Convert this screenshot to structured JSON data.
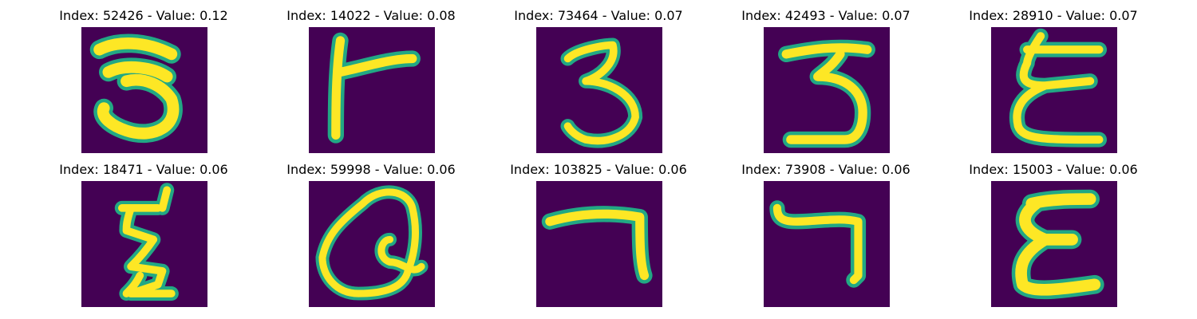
{
  "colors": {
    "background": "#440154",
    "stroke_outer": "#22a884",
    "stroke_inner": "#fde725"
  },
  "panels": [
    {
      "title": "Index: 52426 - Value: 0.12",
      "glyph": "3a"
    },
    {
      "title": "Index: 14022 - Value: 0.08",
      "glyph": "r"
    },
    {
      "title": "Index: 73464 - Value: 0.07",
      "glyph": "3b"
    },
    {
      "title": "Index: 42493 - Value: 0.07",
      "glyph": "3c"
    },
    {
      "title": "Index: 28910 - Value: 0.07",
      "glyph": "e1"
    },
    {
      "title": "Index: 18471 - Value: 0.06",
      "glyph": "z"
    },
    {
      "title": "Index: 59998 - Value: 0.06",
      "glyph": "q"
    },
    {
      "title": "Index: 103825 - Value: 0.06",
      "glyph": "7a"
    },
    {
      "title": "Index: 73908 - Value: 0.06",
      "glyph": "7b"
    },
    {
      "title": "Index: 15003 - Value: 0.06",
      "glyph": "e2"
    }
  ]
}
